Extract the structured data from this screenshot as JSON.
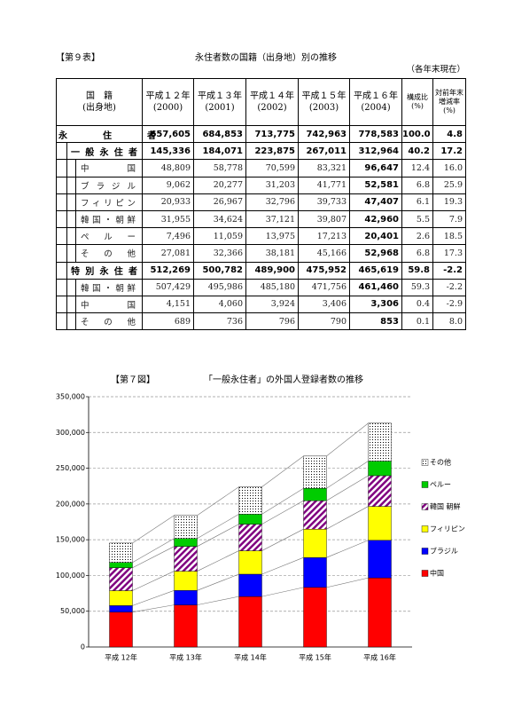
{
  "table_header": {
    "label": "【第９表】",
    "title": "永住者数の国籍（出身地）別の推移",
    "note": "（各年末現在）"
  },
  "table": {
    "header": [
      [
        "国　籍",
        "(出身地)"
      ],
      [
        "平成１２年",
        "(2000)"
      ],
      [
        "平成１３年",
        "(2001)"
      ],
      [
        "平成１４年",
        "(2002)"
      ],
      [
        "平成１５年",
        "(2003)"
      ],
      [
        "平成１６年",
        "(2004)"
      ],
      [
        "構成比",
        "(%)"
      ],
      [
        "対前年末",
        "増減率",
        "(%)"
      ]
    ],
    "rows": [
      [
        "永住者",
        "657,605",
        "684,853",
        "713,775",
        "742,963",
        "778,583",
        "100.0",
        "4.8"
      ],
      [
        "一般永住者",
        "145,336",
        "184,071",
        "223,875",
        "267,011",
        "312,964",
        "40.2",
        "17.2"
      ],
      [
        "中国",
        "48,809",
        "58,778",
        "70,599",
        "83,321",
        "96,647",
        "12.4",
        "16.0"
      ],
      [
        "ブラジル",
        "9,062",
        "20,277",
        "31,203",
        "41,771",
        "52,581",
        "6.8",
        "25.9"
      ],
      [
        "フィリピン",
        "20,933",
        "26,967",
        "32,796",
        "39,733",
        "47,407",
        "6.1",
        "19.3"
      ],
      [
        "韓国・朝鮮",
        "31,955",
        "34,624",
        "37,121",
        "39,807",
        "42,960",
        "5.5",
        "7.9"
      ],
      [
        "ペルー",
        "7,496",
        "11,059",
        "13,975",
        "17,213",
        "20,401",
        "2.6",
        "18.5"
      ],
      [
        "その他",
        "27,081",
        "32,366",
        "38,181",
        "45,166",
        "52,968",
        "6.8",
        "17.3"
      ],
      [
        "特別永住者",
        "512,269",
        "500,782",
        "489,900",
        "475,952",
        "465,619",
        "59.8",
        "-2.2"
      ],
      [
        "韓国・朝鮮",
        "507,429",
        "495,986",
        "485,180",
        "471,756",
        "461,460",
        "59.3",
        "-2.2"
      ],
      [
        "中国",
        "4,151",
        "4,060",
        "3,924",
        "3,406",
        "3,306",
        "0.4",
        "-2.9"
      ],
      [
        "その他",
        "689",
        "736",
        "796",
        "790",
        "853",
        "0.1",
        "8.0"
      ]
    ]
  },
  "chart_data": {
    "type": "stacked_bar",
    "label": "【第７図】",
    "title": "「一般永住者」の外国人登録者数の推移",
    "categories": [
      "平成 12年",
      "平成 13年",
      "平成 14年",
      "平成 15年",
      "平成 16年"
    ],
    "series": [
      {
        "name": "中国",
        "color": "#ff0000",
        "values": [
          48809,
          58778,
          70599,
          83321,
          96647
        ]
      },
      {
        "name": "ブラジル",
        "color": "#0000ff",
        "values": [
          9062,
          20277,
          31203,
          41771,
          52581
        ]
      },
      {
        "name": "フィリピン",
        "color": "#ffff00",
        "values": [
          20933,
          26967,
          32796,
          39733,
          47407
        ]
      },
      {
        "name": "韓国 朝鮮",
        "color": "#800080",
        "pattern": "hatch",
        "values": [
          31955,
          34624,
          37121,
          39807,
          42960
        ]
      },
      {
        "name": "ペルー",
        "color": "#00cc00",
        "values": [
          7496,
          11059,
          13975,
          17213,
          20401
        ]
      },
      {
        "name": "その他",
        "color": "#000000",
        "pattern": "dots",
        "values": [
          27081,
          32366,
          38181,
          45166,
          52968
        ]
      }
    ],
    "ylim": [
      0,
      350000
    ],
    "yticks": [
      0,
      {
        "value": 50000,
        "label": "50,000"
      },
      {
        "value": 100000,
        "label": "100,000"
      },
      {
        "value": 150000,
        "label": "150,000"
      },
      {
        "value": 200000,
        "label": "200,000"
      },
      {
        "value": 250000,
        "label": "250,000"
      },
      {
        "value": 300000,
        "label": "300,000"
      },
      {
        "value": 350000,
        "label": "350,000"
      }
    ],
    "grid": true,
    "legend": "right"
  }
}
